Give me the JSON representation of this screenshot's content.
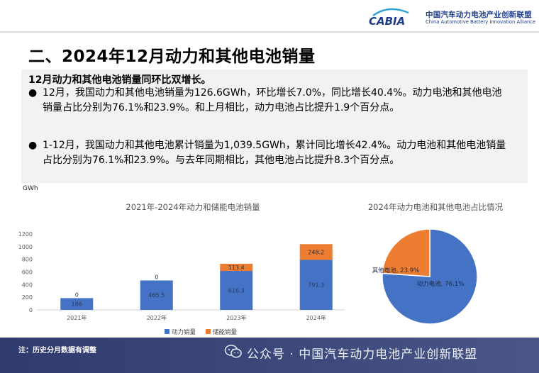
{
  "header": {
    "logo_text": "CABIA",
    "org_cn": "中国汽车动力电池产业创新联盟",
    "org_en": "China Automotive Battery Innovation Alliance"
  },
  "page_title": "二、2024年12月动力和其他电池销量",
  "summary": {
    "lead": "12月动力和其他电池销量同环比双增长。",
    "bullets": [
      "12月，我国动力和其他电池销量为126.6GWh，环比增长7.0%，同比增长40.4%。动力电池和其他电池销量占比分别为76.1%和23.9%。和上月相比，动力电池占比提升1.9个百分点。",
      "1-12月，我国动力和其他电池累计销量为1,039.5GWh，累计同比增长42.4%。动力电池和其他电池销量占比分别为76.1%和23.9%。与去年同期相比，其他电池占比提升8.3个百分点。"
    ],
    "bullet_symbol": "●"
  },
  "unit_label": "GWh",
  "footer": {
    "note": "注：历史分月数据有调整",
    "brand": "公众号 · 中国汽车动力电池产业创新联盟",
    "icon": "wechat-icon"
  },
  "colors": {
    "series_power": "#4472c4",
    "series_storage": "#ed7d31",
    "footer": "#323e70",
    "brand_blue": "#1d3d8c"
  },
  "chart_data": [
    {
      "type": "bar",
      "stacked": true,
      "title": "2021年-2024年动力和储能电池销量",
      "categories": [
        "2021年",
        "2022年",
        "2023年",
        "2024年"
      ],
      "series": [
        {
          "name": "动力销量",
          "values": [
            186,
            465.5,
            616.3,
            791.3
          ],
          "labels": [
            "186",
            "465.5",
            "616.3",
            "791.3"
          ]
        },
        {
          "name": "储能销量",
          "values": [
            0,
            0,
            113.4,
            248.2
          ],
          "labels": [
            "0",
            "0",
            "113.4",
            "248.2"
          ]
        }
      ],
      "ylim": [
        0,
        1200
      ],
      "yticks": [
        0,
        200,
        400,
        600,
        800,
        1000,
        1200
      ],
      "ylabel": "GWh",
      "grid": false,
      "legend": "bottom"
    },
    {
      "type": "pie",
      "title": "2024年动力电池和其他电池占比情况",
      "slices": [
        {
          "name": "动力电池",
          "value": 76.1,
          "label": "动力电池, 76.1%"
        },
        {
          "name": "其他电池",
          "value": 23.9,
          "label": "其他电池, 23.9%"
        }
      ],
      "legend": "none"
    }
  ]
}
